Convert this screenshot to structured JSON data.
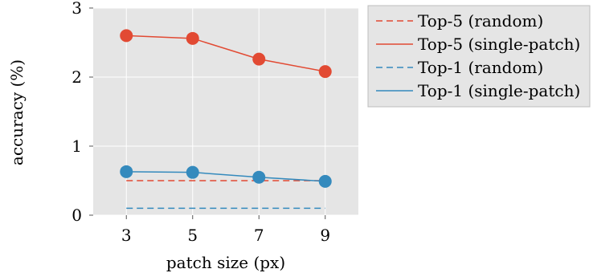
{
  "chart_data": {
    "type": "line",
    "xlabel": "patch size (px)",
    "ylabel": "accuracy (%)",
    "x": [
      3,
      5,
      7,
      9
    ],
    "xticks": [
      "3",
      "5",
      "7",
      "9"
    ],
    "yticks": [
      "0",
      "1",
      "2",
      "3"
    ],
    "xlim": [
      2,
      10
    ],
    "ylim": [
      0,
      3
    ],
    "grid": true,
    "legend_position": "outside-right-top",
    "series": [
      {
        "name": "Top-5 (random)",
        "values": [
          0.5,
          0.5,
          0.5,
          0.5
        ],
        "color": "#E24A33",
        "dashed": true,
        "markers": false
      },
      {
        "name": "Top-5 (single-patch)",
        "values": [
          2.6,
          2.56,
          2.26,
          2.08
        ],
        "color": "#E24A33",
        "dashed": false,
        "markers": true
      },
      {
        "name": "Top-1 (random)",
        "values": [
          0.1,
          0.1,
          0.1,
          0.1
        ],
        "color": "#348ABD",
        "dashed": true,
        "markers": false
      },
      {
        "name": "Top-1 (single-patch)",
        "values": [
          0.63,
          0.62,
          0.55,
          0.49
        ],
        "color": "#348ABD",
        "dashed": false,
        "markers": true
      }
    ],
    "colors": {
      "plot_background": "#E5E5E5",
      "grid": "#FFFFFF",
      "legend_background": "#E5E5E5"
    }
  }
}
